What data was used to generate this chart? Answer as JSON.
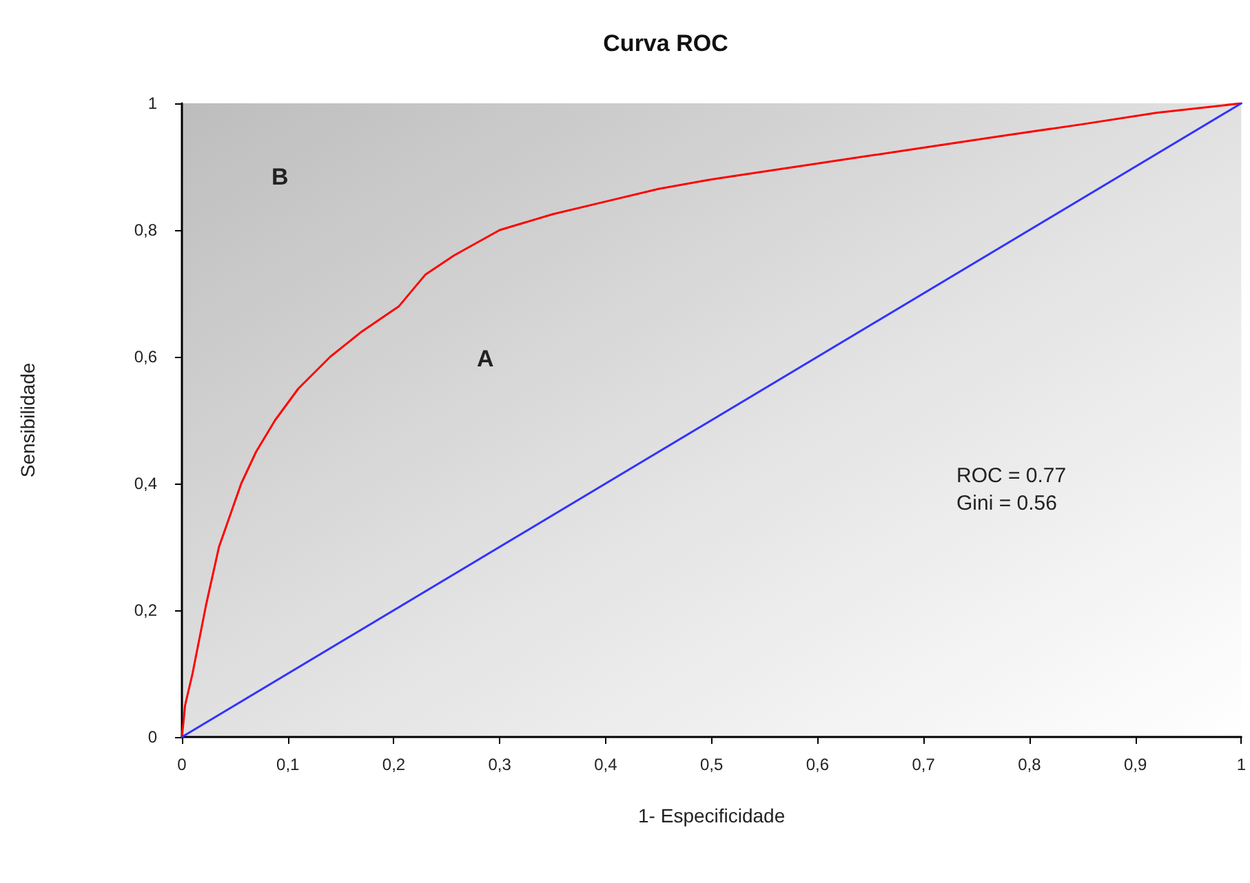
{
  "chart_data": {
    "type": "line",
    "title": "Curva ROC",
    "xlabel": "1- Especificidade",
    "ylabel": "Sensibilidade",
    "series": [
      {
        "color": "#ff0000",
        "x": [
          0,
          0.003,
          0.01,
          0.023,
          0.035,
          0.056,
          0.07,
          0.088,
          0.11,
          0.14,
          0.17,
          0.205,
          0.23,
          0.257,
          0.3,
          0.35,
          0.4,
          0.45,
          0.5,
          0.58,
          0.68,
          0.78,
          0.85,
          0.92,
          1
        ],
        "values": [
          0,
          0.05,
          0.1,
          0.21,
          0.3,
          0.4,
          0.45,
          0.5,
          0.55,
          0.6,
          0.64,
          0.68,
          0.73,
          0.76,
          0.8,
          0.825,
          0.845,
          0.865,
          0.88,
          0.9,
          0.925,
          0.95,
          0.967,
          0.985,
          1
        ]
      },
      {
        "color": "#3333ff",
        "x": [
          0,
          1
        ],
        "values": [
          0,
          1
        ]
      }
    ],
    "xlim": [
      0,
      1
    ],
    "ylim": [
      0,
      1
    ],
    "xticks": [
      0,
      {
        "value": 0.1,
        "label": "0,1"
      },
      {
        "value": 0.2,
        "label": "0,2"
      },
      {
        "value": 0.3,
        "label": "0,3"
      },
      {
        "value": 0.4,
        "label": "0,4"
      },
      {
        "value": 0.5,
        "label": "0,5"
      },
      {
        "value": 0.6,
        "label": "0,6"
      },
      {
        "value": 0.7,
        "label": "0,7"
      },
      {
        "value": 0.8,
        "label": "0,8"
      },
      {
        "value": 0.9,
        "label": "0,9"
      },
      1
    ],
    "yticks": [
      0,
      {
        "value": 0.2,
        "label": "0,2"
      },
      {
        "value": 0.4,
        "label": "0,4"
      },
      {
        "value": 0.6,
        "label": "0,6"
      },
      {
        "value": 0.8,
        "label": "0,8"
      },
      1
    ],
    "annotations": [
      "A",
      "B",
      "ROC = 0.77",
      "Gini = 0.56"
    ],
    "marker": "none",
    "line_style": "solid",
    "grid": false
  }
}
